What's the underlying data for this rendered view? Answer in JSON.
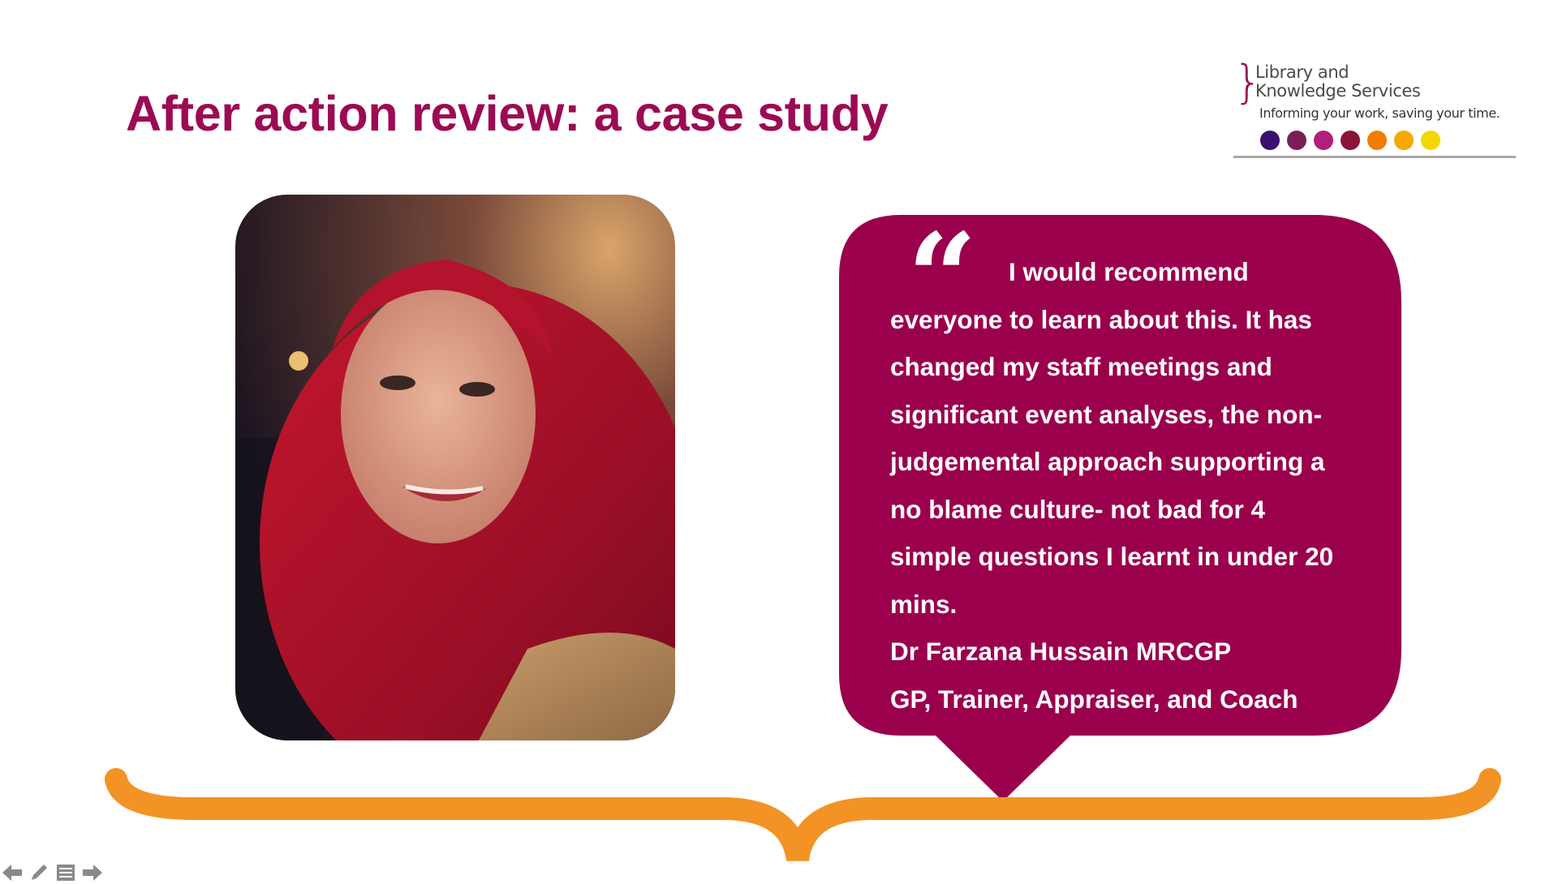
{
  "slide": {
    "title": "After action review: a case study"
  },
  "logo": {
    "line1": "Library and",
    "line2": "Knowledge Services",
    "tagline": "Informing your work, saving your time.",
    "dot_colors": [
      "#3a0f6e",
      "#7a1f55",
      "#b01f7a",
      "#8c1436",
      "#ef7d00",
      "#f6a800",
      "#f5d800"
    ]
  },
  "photo": {
    "alt": "photo of Dr Farzana Hussain"
  },
  "quote": {
    "mark": "“",
    "lines": [
      "I would recommend",
      "everyone to learn about this. It has",
      "changed my staff meetings and",
      "significant event analyses, the non-",
      "judgemental approach supporting a",
      "no blame culture- not bad for 4",
      "simple questions I learnt in under 20",
      "mins.",
      "Dr Farzana Hussain MRCGP",
      "GP, Trainer, Appraiser, and Coach"
    ]
  },
  "colors": {
    "accent": "#9c0a54",
    "bubble": "#9b004d",
    "brace": "#f39325"
  },
  "controls": {
    "previous_icon": "arrow-left-icon",
    "pen_icon": "pencil-icon",
    "menu_icon": "slide-menu-icon",
    "next_icon": "arrow-right-icon"
  }
}
